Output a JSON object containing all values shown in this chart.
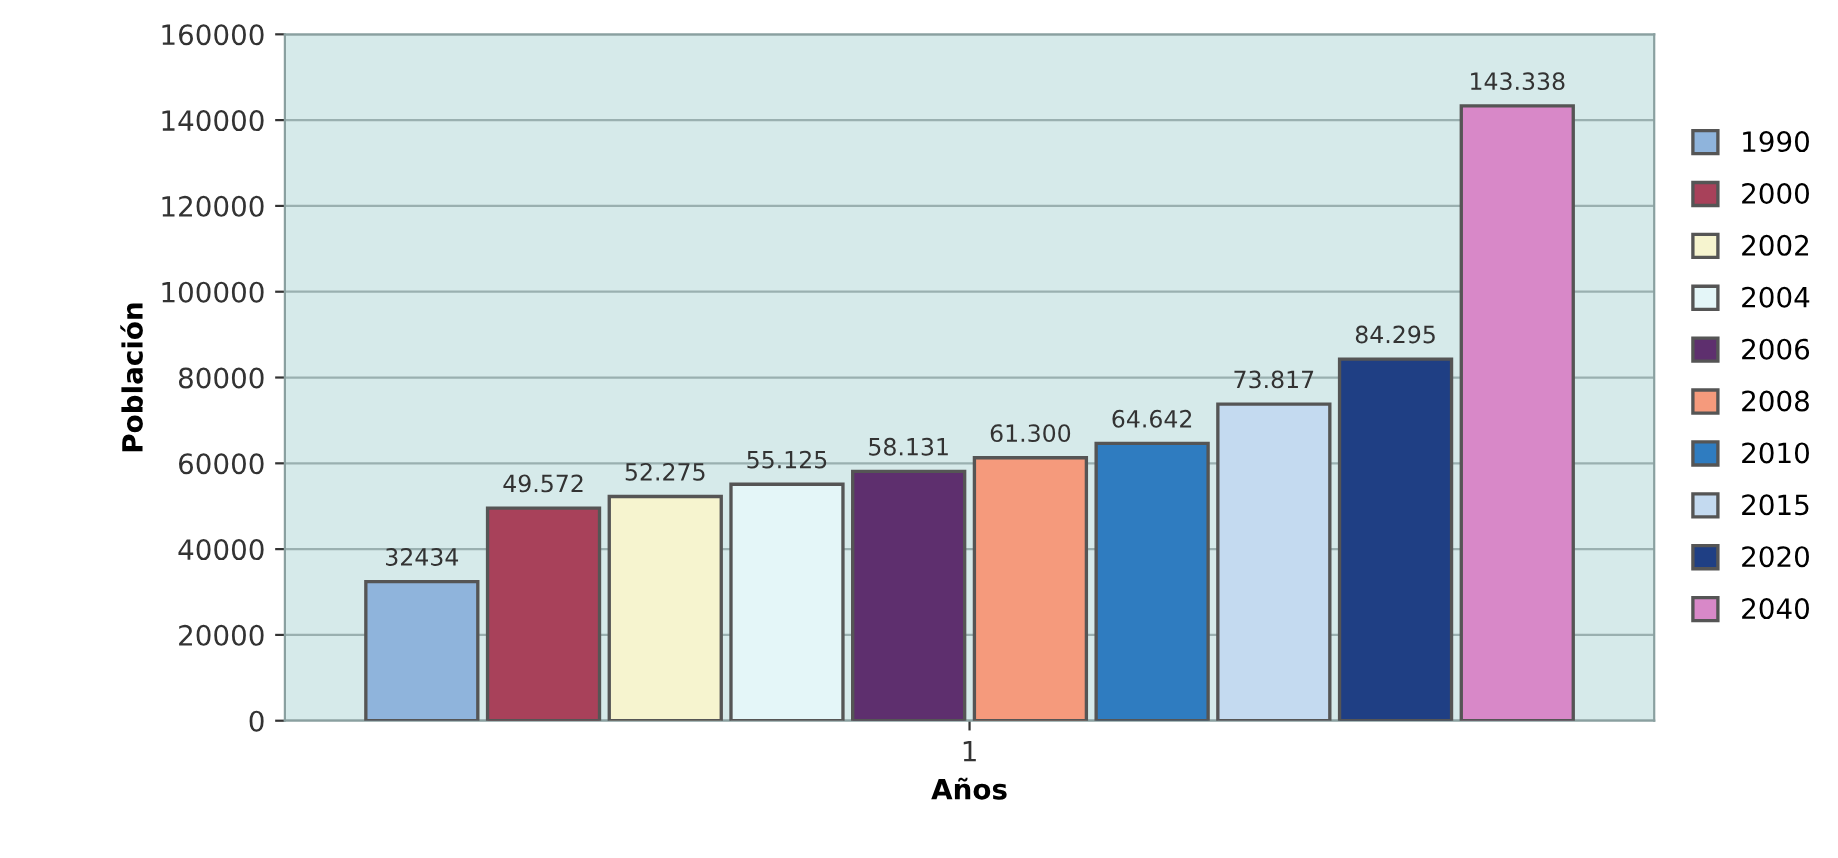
{
  "chart_data": {
    "type": "bar",
    "xlabel": "Años",
    "ylabel": "Población",
    "categories": [
      "1"
    ],
    "series": [
      {
        "name": "1990",
        "color": "#8fb4dc",
        "values": [
          32434
        ],
        "value_labels": [
          "32434"
        ]
      },
      {
        "name": "2000",
        "color": "#a8415a",
        "values": [
          49572
        ],
        "value_labels": [
          "49.572"
        ]
      },
      {
        "name": "2002",
        "color": "#f6f4cf",
        "values": [
          52275
        ],
        "value_labels": [
          "52.275"
        ]
      },
      {
        "name": "2004",
        "color": "#e4f6f8",
        "values": [
          55125
        ],
        "value_labels": [
          "55.125"
        ]
      },
      {
        "name": "2006",
        "color": "#5e2f6e",
        "values": [
          58131
        ],
        "value_labels": [
          "58.131"
        ]
      },
      {
        "name": "2008",
        "color": "#f59a7c",
        "values": [
          61300
        ],
        "value_labels": [
          "61.300"
        ]
      },
      {
        "name": "2010",
        "color": "#2f7cc0",
        "values": [
          64642
        ],
        "value_labels": [
          "64.642"
        ]
      },
      {
        "name": "2015",
        "color": "#c4daf0",
        "values": [
          73817
        ],
        "value_labels": [
          "73.817"
        ]
      },
      {
        "name": "2020",
        "color": "#1f3f84",
        "values": [
          84295
        ],
        "value_labels": [
          "84.295"
        ]
      },
      {
        "name": "2040",
        "color": "#d888c8",
        "values": [
          143338
        ],
        "value_labels": [
          "143.338"
        ]
      }
    ],
    "ylim": [
      0,
      160000
    ],
    "yticks": [
      0,
      20000,
      40000,
      60000,
      80000,
      100000,
      120000,
      140000,
      160000
    ],
    "grid": "y",
    "legend": "right"
  }
}
